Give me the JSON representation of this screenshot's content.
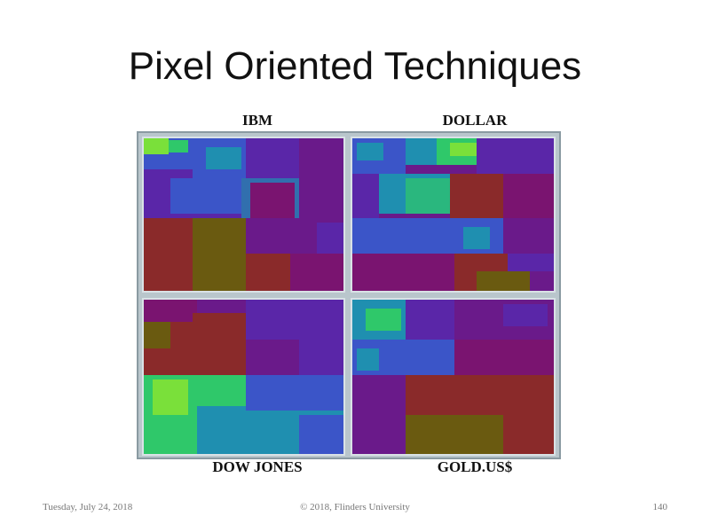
{
  "slide": {
    "title": "Pixel Oriented Techniques"
  },
  "figure": {
    "panels": [
      {
        "label": "IBM"
      },
      {
        "label": "DOLLAR"
      },
      {
        "label": "DOW JONES"
      },
      {
        "label": "GOLD.US$"
      }
    ],
    "colors": {
      "purple": "#6a1a8a",
      "magenta": "#7a1470",
      "violet": "#5a26a8",
      "blue": "#3b55c8",
      "teal": "#1f8fb0",
      "green": "#2fc86a",
      "lime": "#7ae03a",
      "brown": "#8a2a2a",
      "olive": "#6a5a10"
    }
  },
  "footer": {
    "date": "Tuesday, July 24, 2018",
    "copyright": "© 2018, Flinders University",
    "page": "140"
  }
}
